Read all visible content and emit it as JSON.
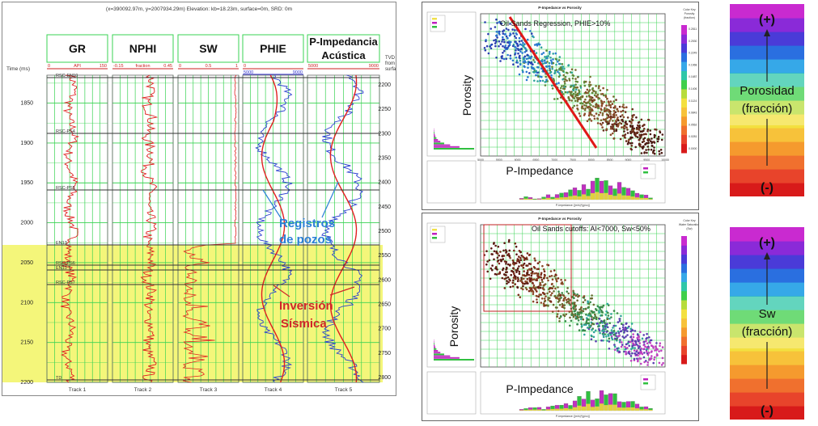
{
  "log_panel": {
    "coords_text": "(x=390092.97m, y=2007934.29m) Elevation: kb=18.23m, surface=0m, SRD: 0m",
    "time_label": "Time (ms)",
    "tvd_label": "TVD (m)",
    "tvd_from": "from",
    "tvd_surface": "surface",
    "tracks": [
      {
        "title": "GR",
        "footer": "Track 1",
        "min": "0",
        "unit": "API",
        "max": "150"
      },
      {
        "title": "NPHI",
        "footer": "Track 2",
        "min": "-0.15",
        "unit": "fraction",
        "max": "0.45"
      },
      {
        "title": "SW",
        "footer": "Track 3",
        "min": "0",
        "unit": "0.5",
        "max": "1"
      },
      {
        "title": "PHIE",
        "footer": "Track 4",
        "min": "0",
        "unit": "",
        "max": ""
      },
      {
        "title": "P-Impedancia",
        "title2": "Acústica",
        "footer": "Track 5",
        "min": "5000",
        "unit": "",
        "max": "9000"
      }
    ],
    "phie_scale_min": "5000",
    "phie_scale_max": "9000",
    "time_ticks": [
      "1850",
      "1900",
      "1950",
      "2000",
      "2050",
      "2100",
      "2150",
      "2200"
    ],
    "tvd_ticks": [
      "2200",
      "2250",
      "2300",
      "2350",
      "2400",
      "2450",
      "2500",
      "2550",
      "2600",
      "2650",
      "2700",
      "2750",
      "2800"
    ],
    "markers": [
      "RSC-EN10",
      "RSC-PS4",
      "RSC-PS5",
      "EN13",
      "RSC-PS6",
      "EN10 T",
      "RSC-PS7",
      "TD"
    ],
    "annotation_logs_1": "Registros",
    "annotation_logs_2": "de pozos",
    "annotation_inv_1": "Inversión",
    "annotation_inv_2": "Sísmica"
  },
  "crossplot_top": {
    "window_title": "P-Impedance vs Porosity",
    "caption": "Oil Sands Regression, PHIE>10%",
    "ylabel": "Porosity",
    "xlabel": "P-Impedance",
    "colorkey_title": "Color Key",
    "colorkey_sub": "Porosity",
    "colorkey_unit": "(fraction)",
    "colorbar_ticks": [
      "0.2811",
      "0.2530",
      "0.2249",
      "0.1968",
      "0.1687",
      "0.1406",
      "0.1124",
      "0.0843",
      "0.0562",
      "0.0281",
      "0.0000"
    ],
    "x_ticks": [
      "5000",
      "5500",
      "6000",
      "6500",
      "7000",
      "7500",
      "8000",
      "8500",
      "9000",
      "9500",
      "10000"
    ],
    "hist_xlabel": "P-Impedance ((m/s)*(g/cc))"
  },
  "crossplot_bottom": {
    "window_title": "P-Impedance vs Porosity",
    "caption": "Oil Sands cutoffs: AI<7000, Sw<50%",
    "ylabel": "Porosity",
    "xlabel": "P-Impedance",
    "colorkey_title": "Color Key",
    "colorkey_sub": "Water Saturation",
    "colorkey_unit": "(Sw)",
    "hist_xlabel": "P-Impedance ((m/s)*(g/cc))"
  },
  "legend_top": {
    "plus": "(+)",
    "label1": "Porosidad",
    "label2": "(fracción)",
    "minus": "(-)"
  },
  "legend_bottom": {
    "plus": "(+)",
    "label1": "Sw",
    "label2": "(fracción)",
    "minus": "(-)"
  },
  "colors": {
    "scale": [
      "#d81a1a",
      "#e8442b",
      "#f0702e",
      "#f59a2e",
      "#f7c23a",
      "#f3e03f",
      "#b7dc3c",
      "#3fcf4a",
      "#2fc7a8",
      "#36a8e8",
      "#2a6fe0",
      "#4a3bd8",
      "#8a2ad8",
      "#c92ad0"
    ],
    "track_bg": "#ffffff",
    "inversion_zone": "#f4f67a",
    "grid": "#39d353"
  },
  "chart_data": [
    {
      "type": "line",
      "title": "",
      "xlabel": "",
      "ylabel": "Time (ms)",
      "ylim": [
        1815,
        2200
      ],
      "series": [
        {
          "name": "GR",
          "x_unit": "API",
          "xlim": [
            0,
            150
          ]
        },
        {
          "name": "NPHI",
          "x_unit": "fraction",
          "xlim": [
            -0.15,
            0.45
          ]
        },
        {
          "name": "SW",
          "xlim": [
            0,
            1
          ]
        },
        {
          "name": "PHIE"
        },
        {
          "name": "P-Impedancia Acústica",
          "xlim": [
            5000,
            9000
          ]
        }
      ]
    },
    {
      "type": "scatter",
      "title": "P-Impedance vs Porosity",
      "xlabel": "P-Impedance",
      "ylabel": "Porosity",
      "xlim": [
        5000,
        10000
      ],
      "ylim": [
        0,
        0.32
      ]
    },
    {
      "type": "scatter",
      "title": "P-Impedance vs Porosity",
      "xlabel": "P-Impedance",
      "ylabel": "Porosity"
    }
  ]
}
